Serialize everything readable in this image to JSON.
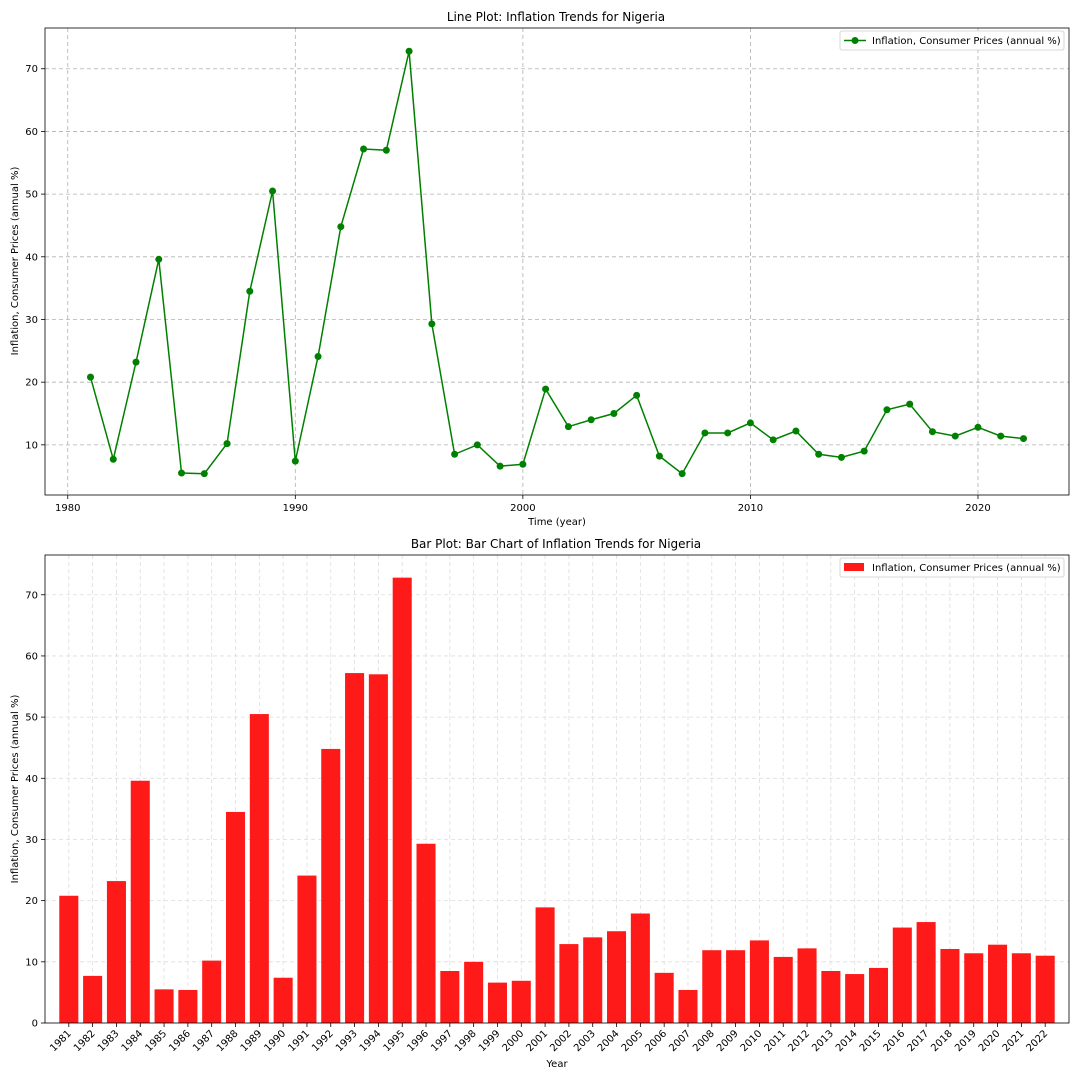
{
  "chart_data": [
    {
      "type": "line",
      "title": "Line Plot: Inflation Trends for Nigeria",
      "xlabel": "Time (year)",
      "ylabel": "Inflation, Consumer Prices (annual %)",
      "xlim": [
        1979,
        2024
      ],
      "ylim": [
        2,
        76.5
      ],
      "x_ticks": [
        "1980",
        "1990",
        "2000",
        "2010",
        "2020"
      ],
      "y_ticks": [
        "10",
        "20",
        "30",
        "40",
        "50",
        "60",
        "70"
      ],
      "grid": true,
      "legend_position": "top-right",
      "series": [
        {
          "name": "Inflation, Consumer Prices (annual %)",
          "color": "#008000",
          "x": [
            1981,
            1982,
            1983,
            1984,
            1985,
            1986,
            1987,
            1988,
            1989,
            1990,
            1991,
            1992,
            1993,
            1994,
            1995,
            1996,
            1997,
            1998,
            1999,
            2000,
            2001,
            2002,
            2003,
            2004,
            2005,
            2006,
            2007,
            2008,
            2009,
            2010,
            2011,
            2012,
            2013,
            2014,
            2015,
            2016,
            2017,
            2018,
            2019,
            2020,
            2021,
            2022
          ],
          "values": [
            20.8,
            7.7,
            23.2,
            39.6,
            5.5,
            5.4,
            10.2,
            34.5,
            50.5,
            7.4,
            24.1,
            44.8,
            57.2,
            57.0,
            72.8,
            29.3,
            8.5,
            10.0,
            6.6,
            6.9,
            18.9,
            12.9,
            14.0,
            15.0,
            17.9,
            8.2,
            5.4,
            11.9,
            11.9,
            13.5,
            10.8,
            12.2,
            8.5,
            8.0,
            9.0,
            15.6,
            16.5,
            12.1,
            11.4,
            12.8,
            11.4,
            11.0
          ]
        }
      ]
    },
    {
      "type": "bar",
      "title": "Bar Plot: Bar Chart of Inflation Trends for Nigeria",
      "xlabel": "Year",
      "ylabel": "Inflation, Consumer Prices (annual %)",
      "ylim": [
        0,
        76.5
      ],
      "y_ticks": [
        "0",
        "10",
        "20",
        "30",
        "40",
        "50",
        "60",
        "70"
      ],
      "grid": true,
      "legend_position": "top-right",
      "categories": [
        "1981",
        "1982",
        "1983",
        "1984",
        "1985",
        "1986",
        "1987",
        "1988",
        "1989",
        "1990",
        "1991",
        "1992",
        "1993",
        "1994",
        "1995",
        "1996",
        "1997",
        "1998",
        "1999",
        "2000",
        "2001",
        "2002",
        "2003",
        "2004",
        "2005",
        "2006",
        "2007",
        "2008",
        "2009",
        "2010",
        "2011",
        "2012",
        "2013",
        "2014",
        "2015",
        "2016",
        "2017",
        "2018",
        "2019",
        "2020",
        "2021",
        "2022"
      ],
      "series": [
        {
          "name": "Inflation, Consumer Prices (annual %)",
          "color": "#ff1a1a",
          "values": [
            20.8,
            7.7,
            23.2,
            39.6,
            5.5,
            5.4,
            10.2,
            34.5,
            50.5,
            7.4,
            24.1,
            44.8,
            57.2,
            57.0,
            72.8,
            29.3,
            8.5,
            10.0,
            6.6,
            6.9,
            18.9,
            12.9,
            14.0,
            15.0,
            17.9,
            8.2,
            5.4,
            11.9,
            11.9,
            13.5,
            10.8,
            12.2,
            8.5,
            8.0,
            9.0,
            15.6,
            16.5,
            12.1,
            11.4,
            12.8,
            11.4,
            11.0
          ]
        }
      ]
    }
  ]
}
